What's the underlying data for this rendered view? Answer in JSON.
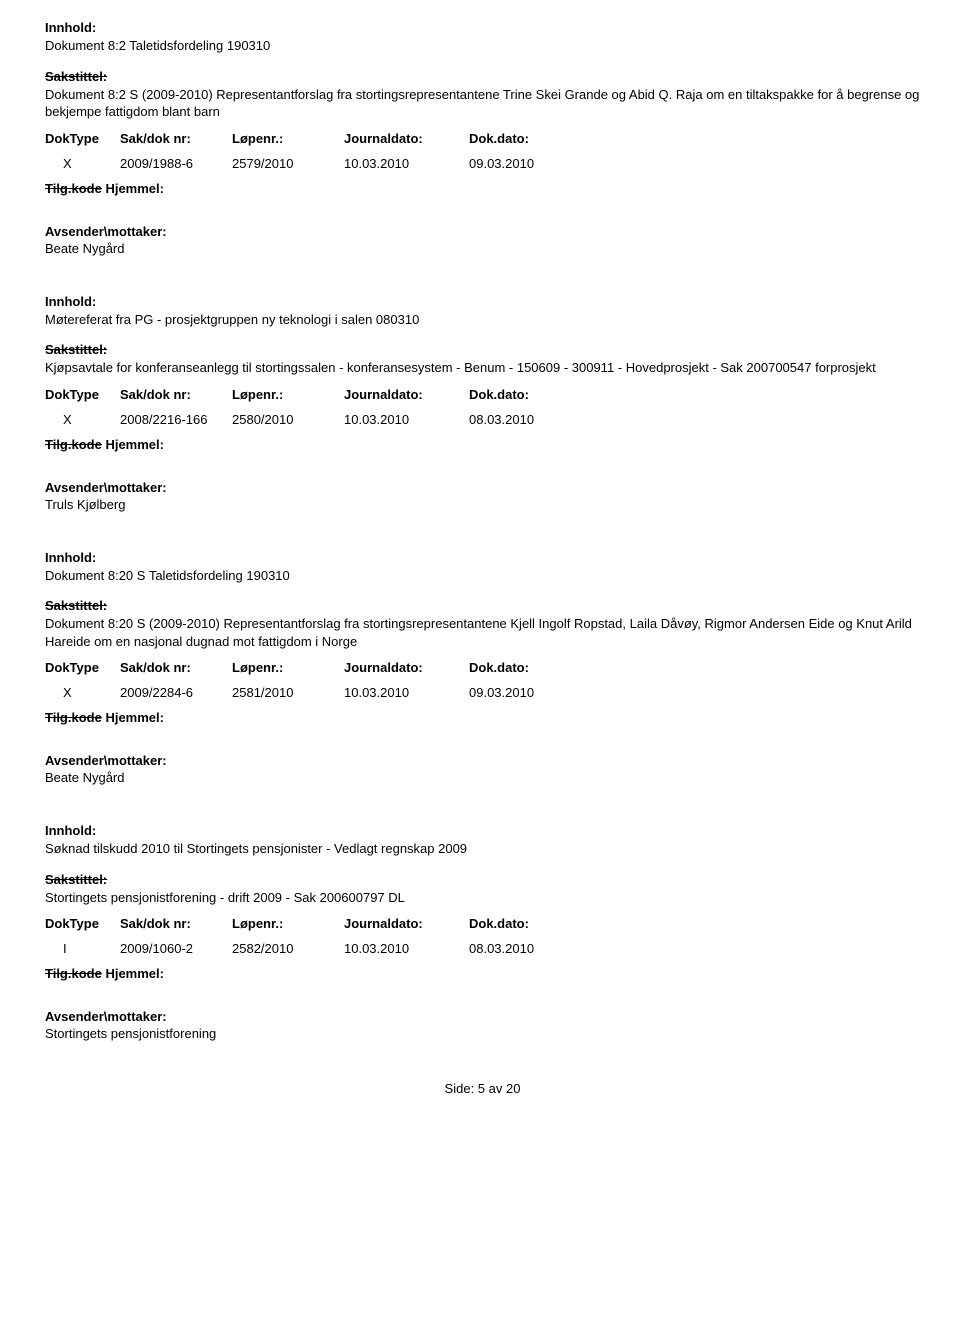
{
  "labels": {
    "innhold": "Innhold:",
    "sakstittel": "Sakstittel:",
    "doktype": "DokType",
    "sakdok": "Sak/dok nr:",
    "lopenr": "Løpenr.:",
    "journaldato": "Journaldato:",
    "dokdato": "Dok.dato:",
    "tilgkode": "Tilg.kode",
    "hjemmel": "Hjemmel:",
    "avsender": "Avsender\\mottaker:"
  },
  "entries": [
    {
      "innhold": "Dokument 8:2 Taletidsfordeling 190310",
      "sakstittel": "Dokument 8:2 S (2009-2010) Representantforslag fra stortingsrepresentantene Trine Skei Grande og Abid Q. Raja om en tiltakspakke for å begrense og bekjempe fattigdom blant barn",
      "doktype": "X",
      "sakdok": "2009/1988-6",
      "lopenr": "2579/2010",
      "journaldato": "10.03.2010",
      "dokdato": "09.03.2010",
      "avsender": "Beate Nygård"
    },
    {
      "innhold": "Møtereferat fra PG - prosjektgruppen ny teknologi i salen 080310",
      "sakstittel": "Kjøpsavtale for konferanseanlegg til stortingssalen -  konferansesystem -  Benum - 150609 - 300911 - Hovedprosjekt - Sak 200700547 forprosjekt",
      "doktype": "X",
      "sakdok": "2008/2216-166",
      "lopenr": "2580/2010",
      "journaldato": "10.03.2010",
      "dokdato": "08.03.2010",
      "avsender": "Truls Kjølberg"
    },
    {
      "innhold": "Dokument 8:20 S Taletidsfordeling 190310",
      "sakstittel": "Dokument 8:20 S (2009-2010) Representantforslag fra stortingsrepresentantene Kjell Ingolf Ropstad, Laila Dåvøy, Rigmor Andersen Eide og Knut Arild Hareide om en nasjonal dugnad mot fattigdom i Norge",
      "doktype": "X",
      "sakdok": "2009/2284-6",
      "lopenr": "2581/2010",
      "journaldato": "10.03.2010",
      "dokdato": "09.03.2010",
      "avsender": "Beate Nygård"
    },
    {
      "innhold": "Søknad tilskudd 2010 til Stortingets pensjonister - Vedlagt regnskap 2009",
      "sakstittel": "Stortingets pensjonistforening   - drift 2009 - Sak 200600797 DL",
      "doktype": "I",
      "sakdok": "2009/1060-2",
      "lopenr": "2582/2010",
      "journaldato": "10.03.2010",
      "dokdato": "08.03.2010",
      "avsender": "Stortingets pensjonistforening"
    }
  ],
  "footer": "Side: 5 av 20"
}
